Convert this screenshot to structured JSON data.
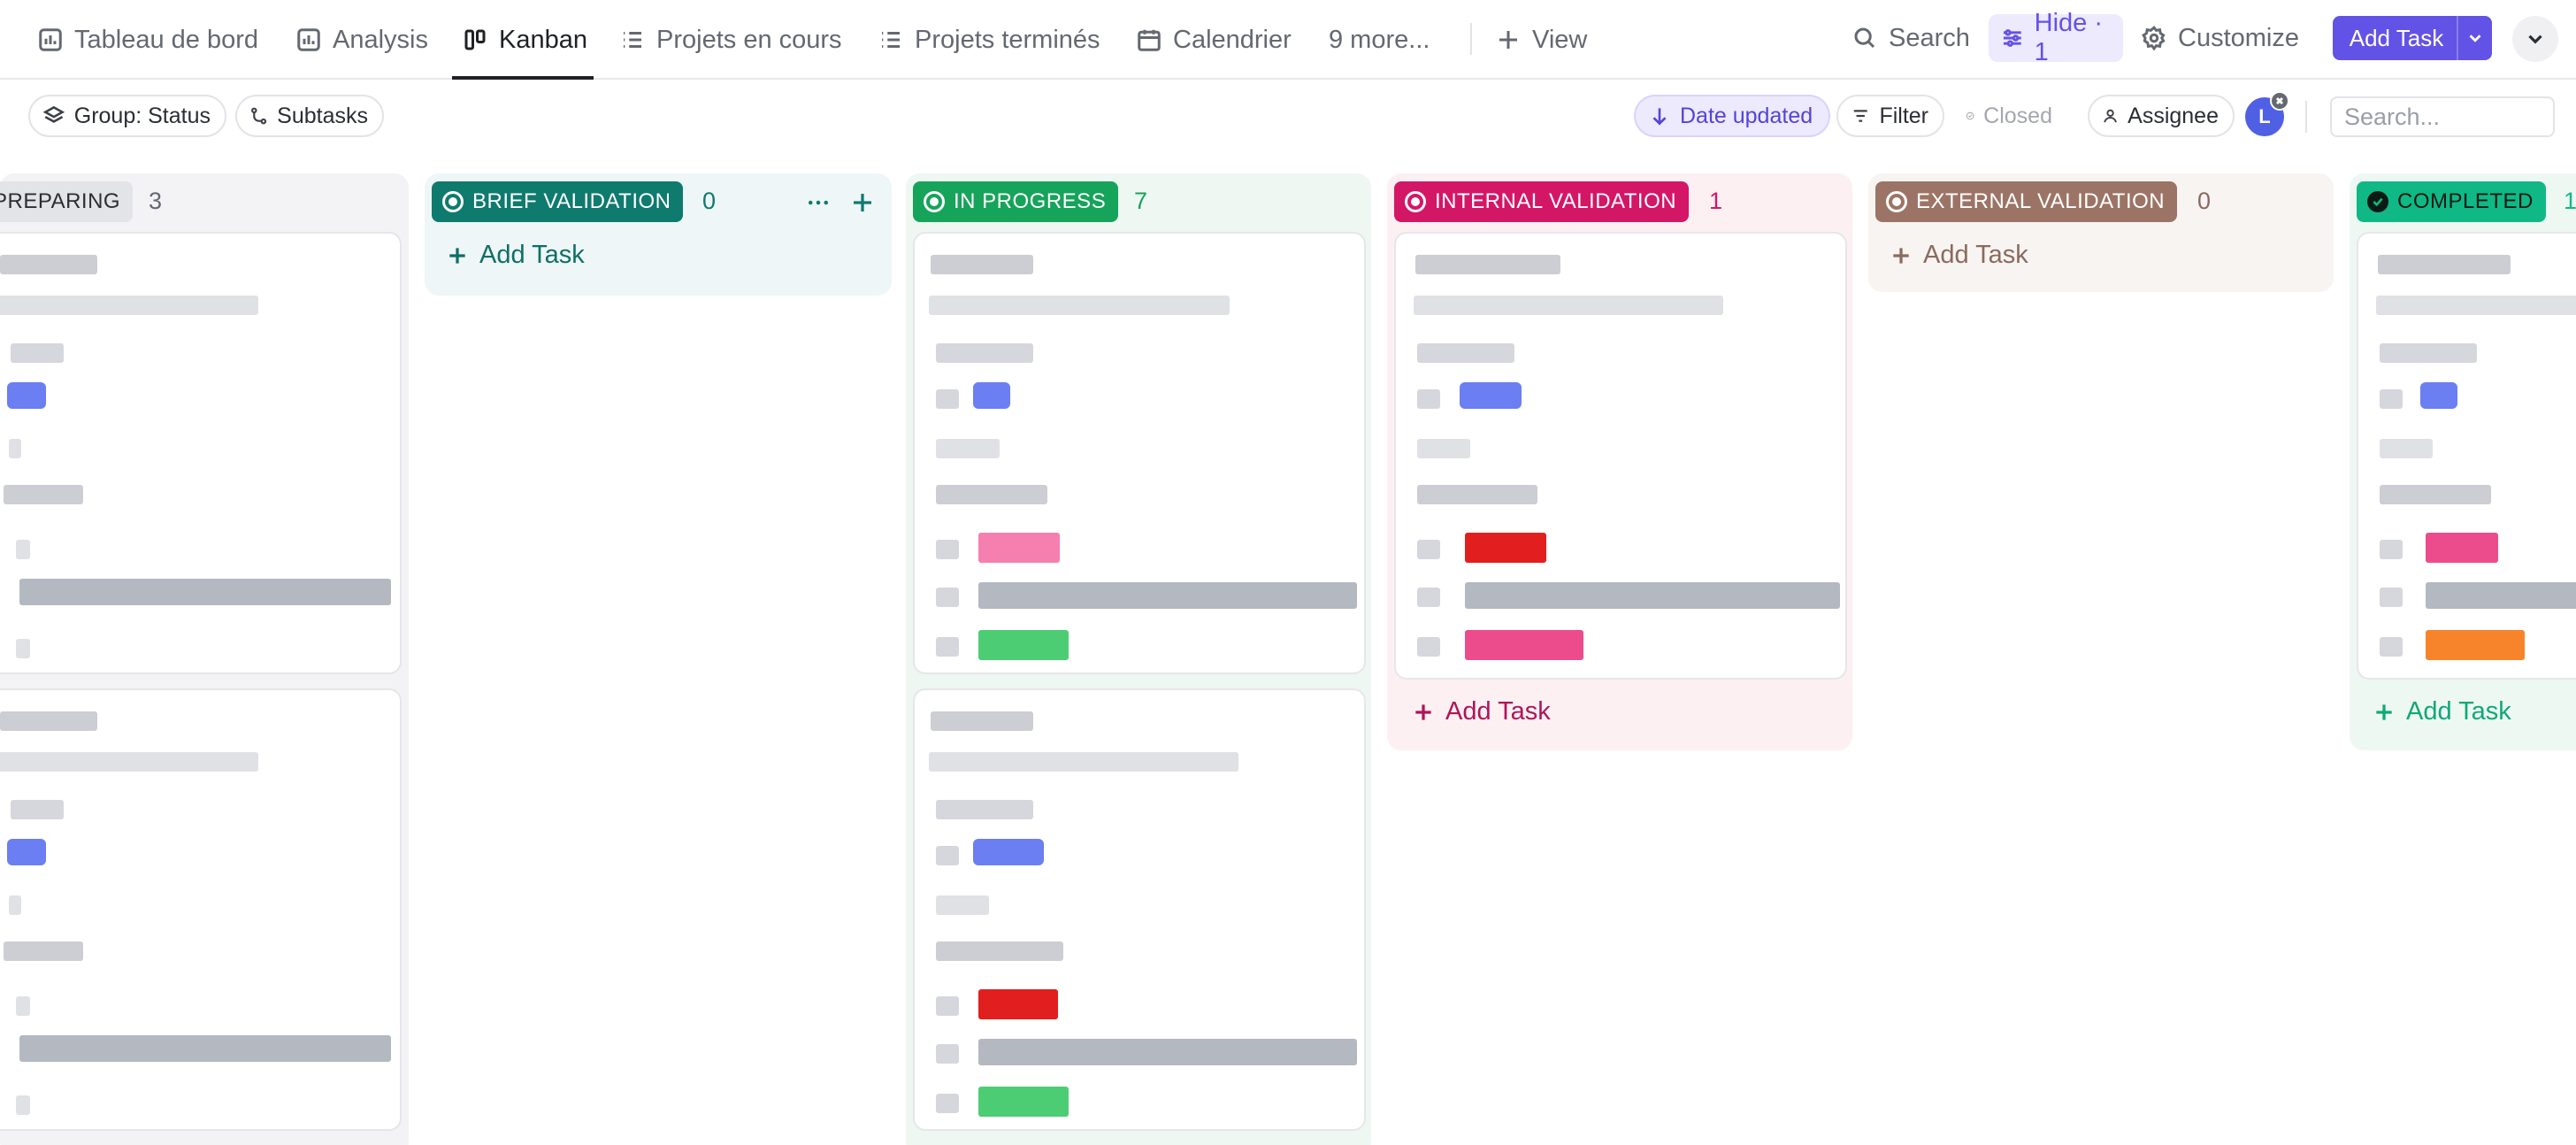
{
  "tabs": [
    {
      "label": "Tableau de bord",
      "icon": "bar-chart-icon",
      "active": false
    },
    {
      "label": "Analysis",
      "icon": "bar-chart-icon",
      "active": false
    },
    {
      "label": "Kanban",
      "icon": "board-icon",
      "active": true
    },
    {
      "label": "Projets en cours",
      "icon": "list-icon",
      "active": false
    },
    {
      "label": "Projets terminés",
      "icon": "list-icon",
      "active": false
    },
    {
      "label": "Calendrier",
      "icon": "calendar-icon",
      "active": false
    },
    {
      "label": "9 more...",
      "icon": "",
      "active": false
    },
    {
      "label": "View",
      "icon": "plus-icon",
      "active": false
    }
  ],
  "top_right": {
    "search": "Search",
    "hide": "Hide · 1",
    "customize": "Customize",
    "add_task": "Add Task"
  },
  "toolbar": {
    "group": "Group: Status",
    "subtasks": "Subtasks",
    "sort": "Date updated",
    "filter": "Filter",
    "closed": "Closed",
    "assignee": "Assignee",
    "avatar_initial": "L",
    "search_placeholder": "Search..."
  },
  "columns": [
    {
      "status": "PREPARING",
      "count": "3",
      "color": "#e3e4e8"
    },
    {
      "status": "BRIEF VALIDATION",
      "count": "0",
      "color": "#0f7a6e",
      "add_task": "Add Task"
    },
    {
      "status": "IN PROGRESS",
      "count": "7",
      "color": "#16a35a"
    },
    {
      "status": "INTERNAL VALIDATION",
      "count": "1",
      "color": "#d41667",
      "add_task": "Add Task"
    },
    {
      "status": "EXTERNAL VALIDATION",
      "count": "0",
      "color": "#9c7465",
      "add_task": "Add Task"
    },
    {
      "status": "COMPLETED",
      "count": "1",
      "color": "#10b886",
      "add_task": "Add Task"
    }
  ]
}
